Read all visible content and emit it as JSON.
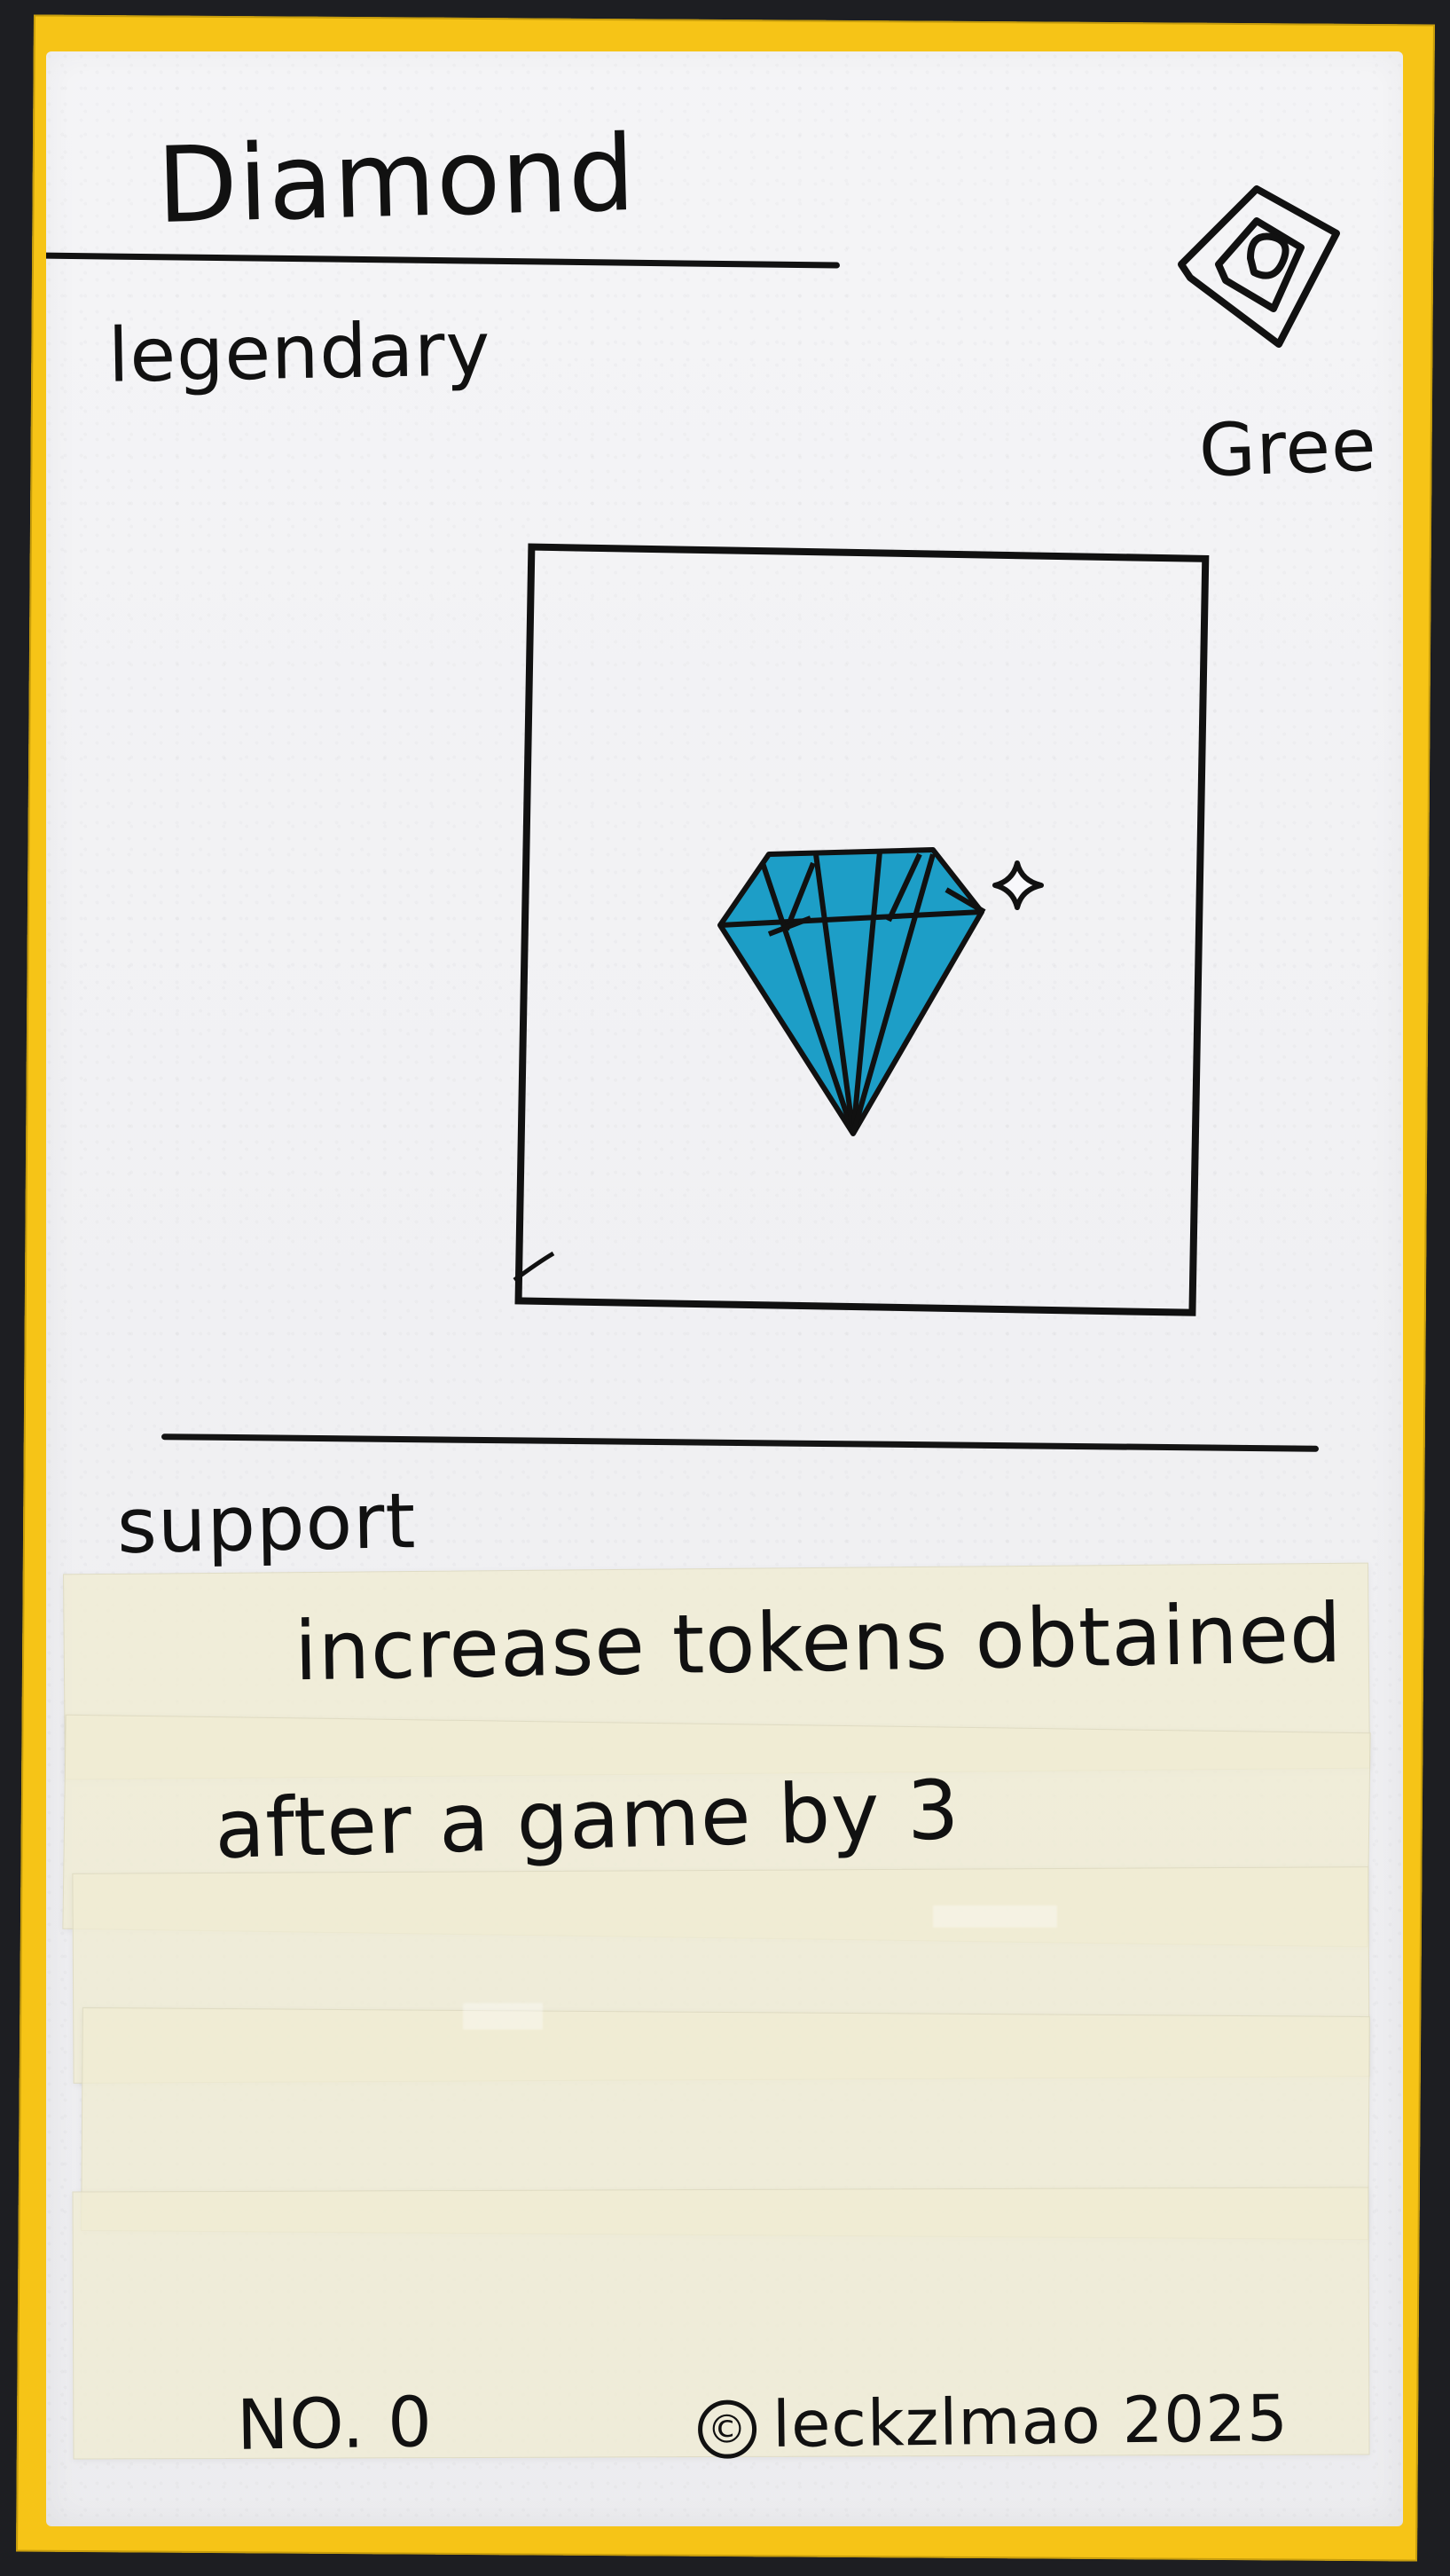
{
  "card": {
    "name": "Diamond",
    "rarity": "legendary",
    "set_code": "Gree",
    "type": "support",
    "rules_lines": [
      "increase tokens obtained",
      "after a game by 3"
    ],
    "card_number": "NO. 0",
    "copyright_symbol": "©",
    "copyright_text": "leckzlmao 2025"
  },
  "art": {
    "icon": "diamond-icon",
    "sparkle_icon": "sparkle-icon",
    "gem_color": "#1d9ec7",
    "outline_color": "#111111"
  },
  "colors": {
    "border": "#f6c417",
    "face": "#f1f1f4",
    "background": "#1d1e22",
    "tape": "#f0ecd2"
  }
}
